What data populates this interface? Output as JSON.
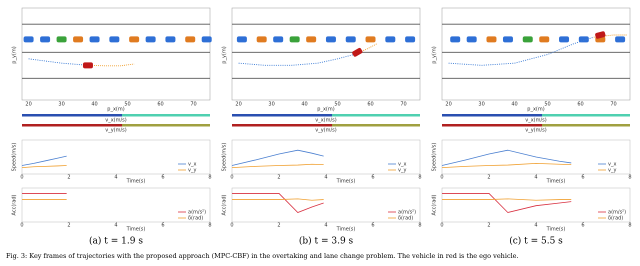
{
  "figure": {
    "caption": "Fig. 3: Key frames of trajectories with the proposed approach (MPC-CBF) in the overtaking and lane change problem. The vehicle in red is the ego vehicle.",
    "labels": {
      "py": "p_y(m)",
      "px": "p_x(m)",
      "vx_bar": "v_x(m/s)",
      "vy_bar": "v_y(m/s)",
      "speed": "Speed(m/s)",
      "acc": "Acc(rad)",
      "time": "Time(s)",
      "leg_vx": "v_x",
      "leg_vy": "v_y",
      "leg_a": "a(m/s²)",
      "leg_d": "δ(rad)"
    },
    "road": {
      "xlim": [
        18,
        75
      ],
      "xticks": [
        20,
        30,
        40,
        50,
        60,
        70
      ],
      "ylim": [
        -6,
        12
      ],
      "lines": [
        11.5,
        5,
        -1
      ]
    },
    "time": {
      "xlim": [
        0,
        8
      ],
      "xticks": [
        0,
        2,
        4,
        6,
        8
      ],
      "speed_ylim": [
        8,
        16
      ],
      "acc_ylim": [
        -3,
        2
      ]
    },
    "panels": [
      {
        "caption": "(a) t = 1.9 s",
        "cars": [
          {
            "x": 20,
            "y": 8,
            "color": "#2e6fd6"
          },
          {
            "x": 25,
            "y": 8,
            "color": "#2e6fd6"
          },
          {
            "x": 30,
            "y": 8,
            "color": "#3aa23a"
          },
          {
            "x": 35,
            "y": 8,
            "color": "#e07b20"
          },
          {
            "x": 40,
            "y": 8,
            "color": "#2e6fd6"
          },
          {
            "x": 46,
            "y": 8,
            "color": "#2e6fd6"
          },
          {
            "x": 52,
            "y": 8,
            "color": "#e07b20"
          },
          {
            "x": 57,
            "y": 8,
            "color": "#2e6fd6"
          },
          {
            "x": 63,
            "y": 8,
            "color": "#2e6fd6"
          },
          {
            "x": 69,
            "y": 8,
            "color": "#e07b20"
          },
          {
            "x": 74,
            "y": 8,
            "color": "#2e6fd6"
          }
        ],
        "traj": {
          "x": [
            20,
            25,
            30,
            35,
            38
          ],
          "y": [
            3.5,
            3,
            2.5,
            2.2,
            2
          ]
        },
        "pred": {
          "x": [
            38,
            43,
            48,
            52
          ],
          "y": [
            2,
            1.9,
            1.9,
            2.3
          ]
        },
        "ego": {
          "x": 38,
          "y": 2,
          "angle": 0
        },
        "t": [
          0,
          0.5,
          1,
          1.5,
          1.9
        ],
        "vx": [
          10,
          10.5,
          11.1,
          11.7,
          12.2
        ],
        "vy": [
          9.5,
          9.7,
          9.8,
          9.9,
          10
        ],
        "a": [
          1.2,
          1.2,
          1.2,
          1.2,
          1.2
        ],
        "d": [
          0.3,
          0.3,
          0.3,
          0.3,
          0.3
        ]
      },
      {
        "caption": "(b) t = 3.9 s",
        "cars": [
          {
            "x": 21,
            "y": 8,
            "color": "#2e6fd6"
          },
          {
            "x": 27,
            "y": 8,
            "color": "#e07b20"
          },
          {
            "x": 32,
            "y": 8,
            "color": "#2e6fd6"
          },
          {
            "x": 37,
            "y": 8,
            "color": "#3aa23a"
          },
          {
            "x": 42,
            "y": 8,
            "color": "#e07b20"
          },
          {
            "x": 48,
            "y": 8,
            "color": "#2e6fd6"
          },
          {
            "x": 54,
            "y": 8,
            "color": "#2e6fd6"
          },
          {
            "x": 60,
            "y": 8,
            "color": "#e07b20"
          },
          {
            "x": 66,
            "y": 8,
            "color": "#2e6fd6"
          },
          {
            "x": 72,
            "y": 8,
            "color": "#2e6fd6"
          }
        ],
        "traj": {
          "x": [
            20,
            28,
            36,
            44,
            50,
            55
          ],
          "y": [
            2.5,
            2,
            2,
            2.5,
            3.5,
            4.5
          ]
        },
        "pred": {
          "x": [
            55,
            59,
            62
          ],
          "y": [
            4.5,
            5.8,
            7
          ]
        },
        "ego": {
          "x": 56,
          "y": 5,
          "angle": -30
        },
        "t": [
          0,
          1,
          2,
          2.8,
          3.4,
          3.9
        ],
        "vx": [
          10,
          11.3,
          12.7,
          13.6,
          12.9,
          12.2
        ],
        "vy": [
          9.5,
          9.8,
          10,
          10.1,
          10.3,
          10.2
        ],
        "a": [
          1.2,
          1.2,
          1.2,
          -1.6,
          -0.8,
          -0.2
        ],
        "d": [
          0.3,
          0.3,
          0.3,
          0.4,
          0.2,
          0.3
        ]
      },
      {
        "caption": "(c) t = 5.5 s",
        "cars": [
          {
            "x": 22,
            "y": 8,
            "color": "#2e6fd6"
          },
          {
            "x": 27,
            "y": 8,
            "color": "#2e6fd6"
          },
          {
            "x": 33,
            "y": 8,
            "color": "#e07b20"
          },
          {
            "x": 38,
            "y": 8,
            "color": "#2e6fd6"
          },
          {
            "x": 44,
            "y": 8,
            "color": "#3aa23a"
          },
          {
            "x": 49,
            "y": 8,
            "color": "#e07b20"
          },
          {
            "x": 55,
            "y": 8,
            "color": "#2e6fd6"
          },
          {
            "x": 61,
            "y": 8,
            "color": "#2e6fd6"
          },
          {
            "x": 66,
            "y": 8,
            "color": "#e07b20"
          },
          {
            "x": 72,
            "y": 8,
            "color": "#2e6fd6"
          }
        ],
        "traj": {
          "x": [
            20,
            30,
            40,
            50,
            58,
            64
          ],
          "y": [
            2.5,
            2,
            2.5,
            4.5,
            7,
            8.5
          ]
        },
        "pred": {
          "x": [
            64,
            70,
            74
          ],
          "y": [
            8.5,
            9,
            9
          ]
        },
        "ego": {
          "x": 66,
          "y": 9,
          "angle": -15
        },
        "t": [
          0,
          1,
          2,
          2.8,
          4,
          5,
          5.5
        ],
        "vx": [
          10,
          11.3,
          12.7,
          13.6,
          12,
          11,
          10.6
        ],
        "vy": [
          9.5,
          9.8,
          10,
          10.1,
          10.5,
          10.3,
          10.2
        ],
        "a": [
          1.2,
          1.2,
          1.2,
          -1.6,
          -0.6,
          -0.2,
          0
        ],
        "d": [
          0.3,
          0.3,
          0.3,
          0.4,
          0.2,
          0.3,
          0.3
        ]
      }
    ]
  }
}
